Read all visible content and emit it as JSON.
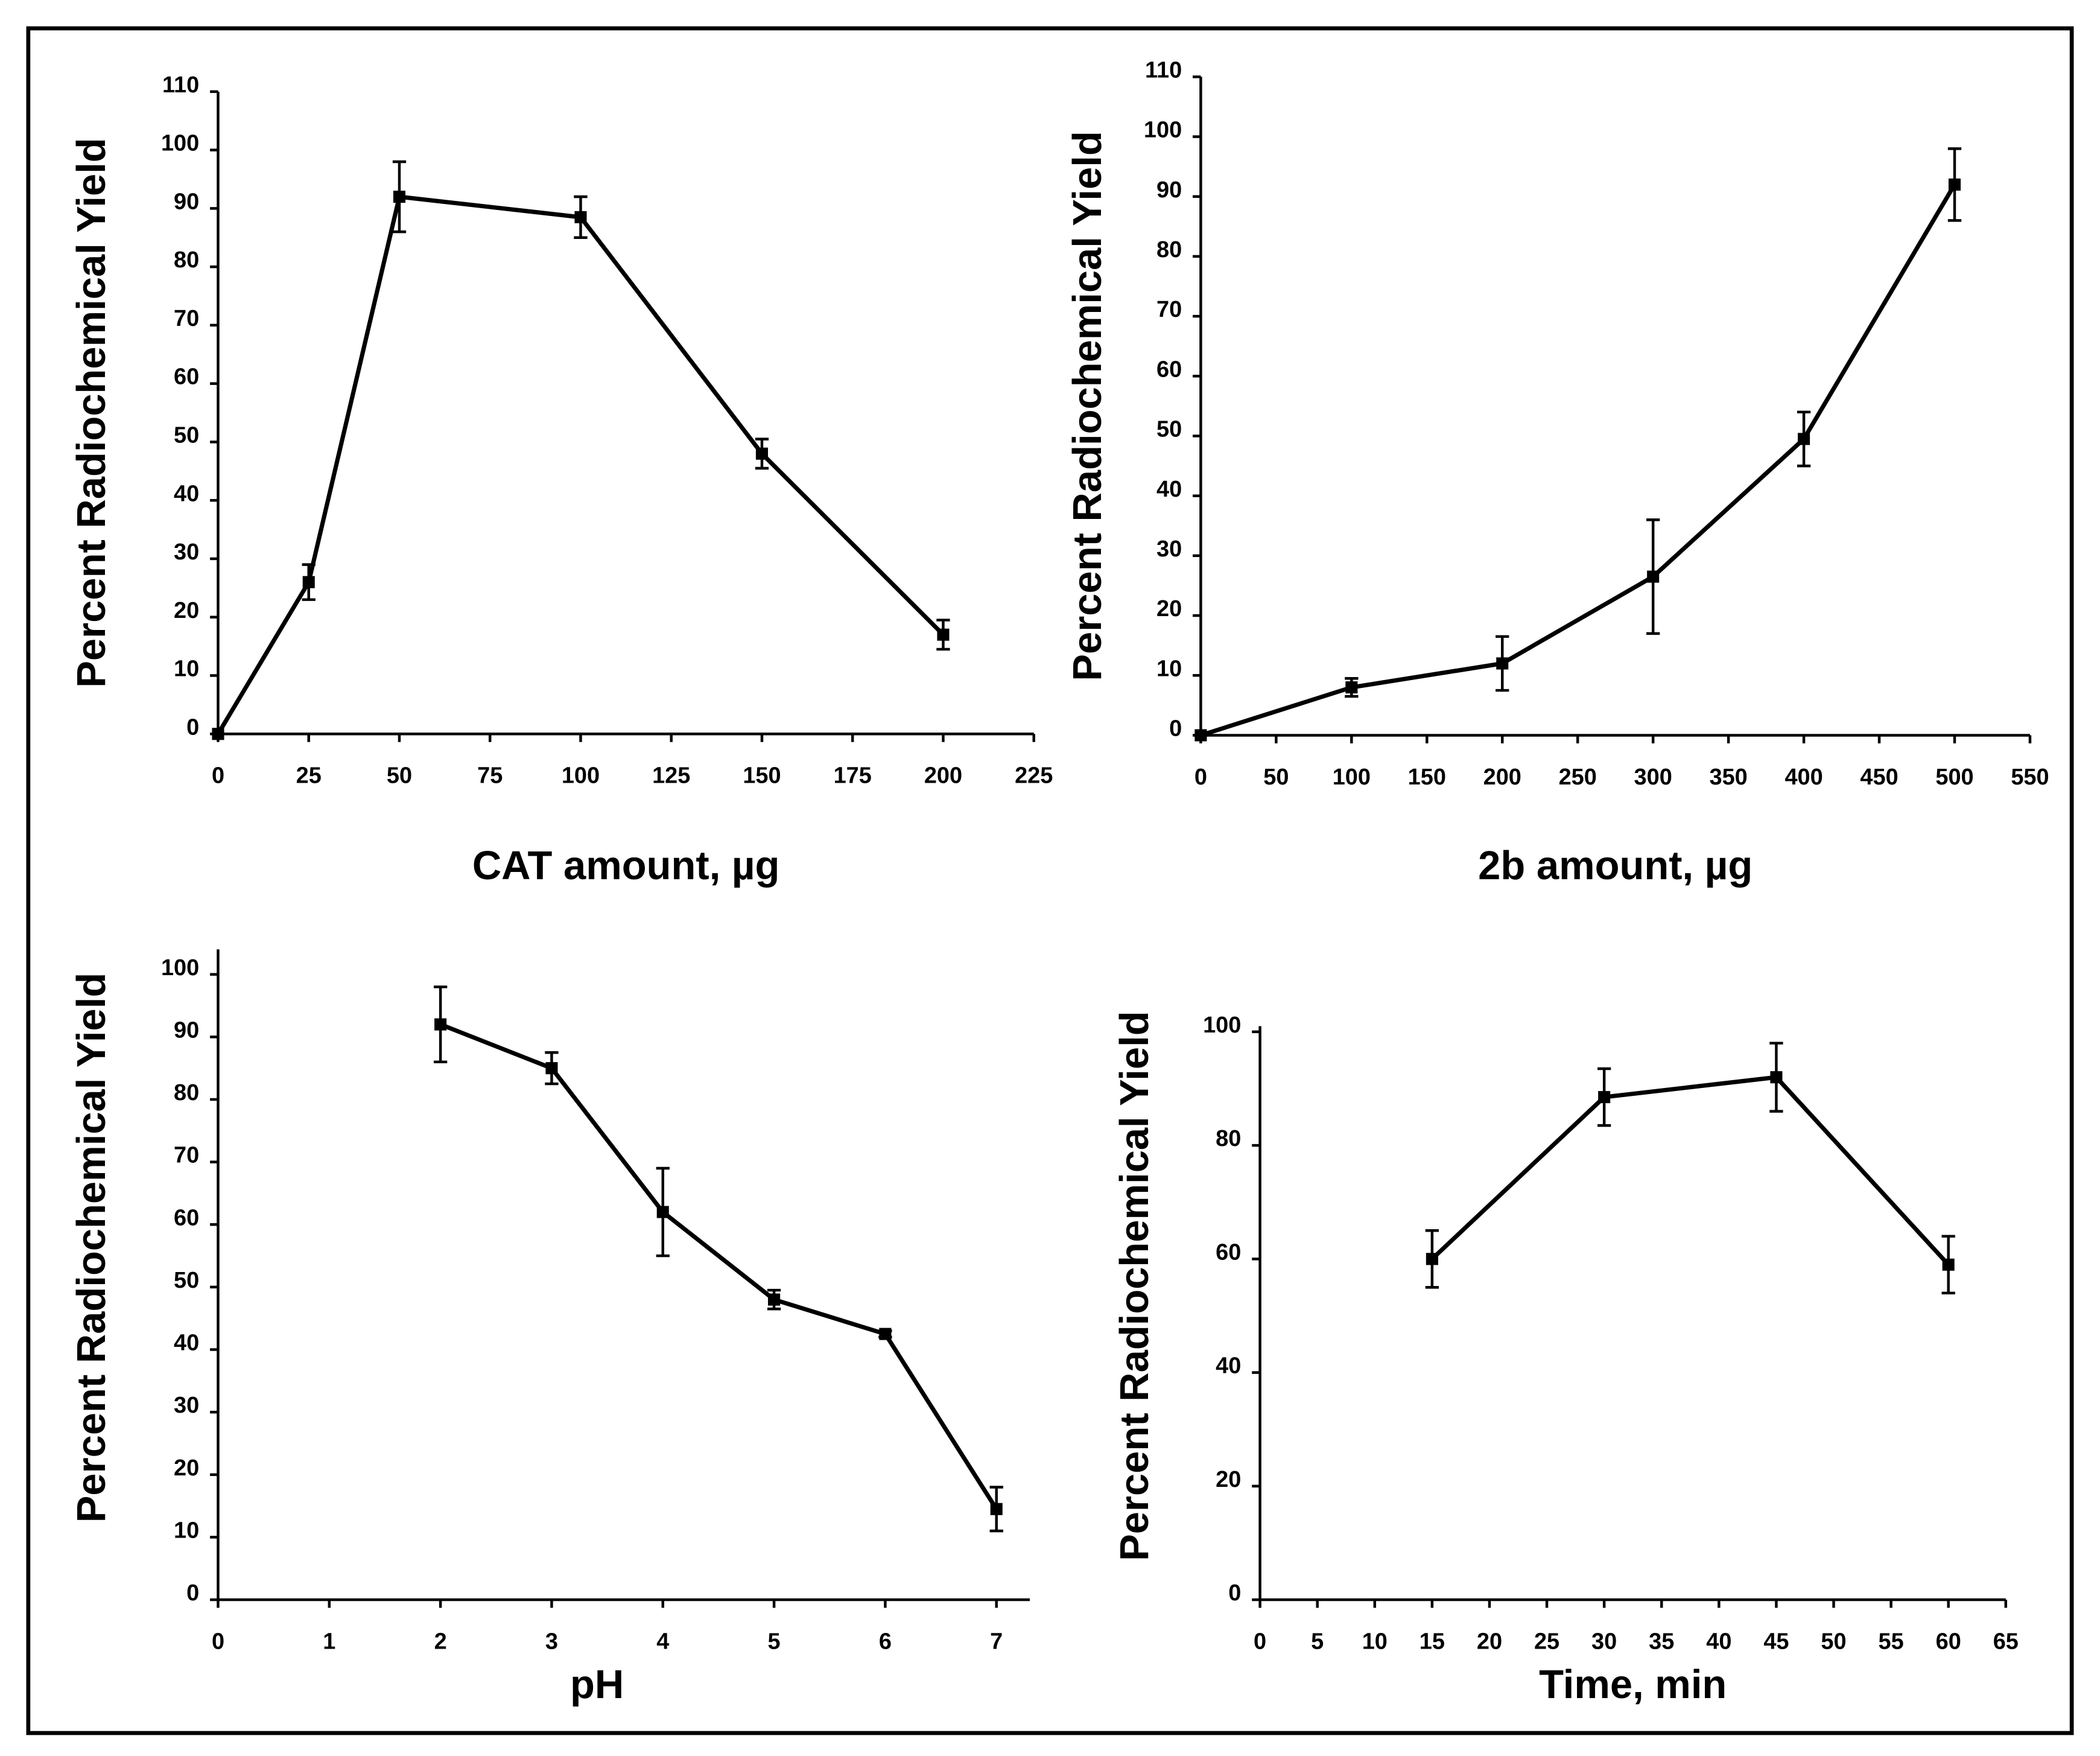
{
  "chart_data": [
    {
      "type": "line",
      "x_label": "CAT amount, µg",
      "y_label": "Percent Radiochemical Yield",
      "x": [
        0,
        25,
        50,
        100,
        150,
        200
      ],
      "series": [
        {
          "color": "#000000",
          "values": [
            0,
            26,
            92,
            88.5,
            48,
            17
          ],
          "errors": [
            0,
            3,
            6,
            3.5,
            2.5,
            2.5
          ]
        }
      ],
      "xlim": [
        0,
        225
      ],
      "ylim": [
        0,
        110
      ],
      "xticks": [
        0,
        25,
        50,
        75,
        100,
        125,
        150,
        175,
        200,
        225
      ],
      "yticks": [
        0,
        10,
        20,
        30,
        40,
        50,
        60,
        70,
        80,
        90,
        100,
        110
      ]
    },
    {
      "type": "line",
      "x_label": "2b amount, µg",
      "y_label": "Percent Radiochemical Yield",
      "x": [
        0,
        100,
        200,
        300,
        400,
        500
      ],
      "series": [
        {
          "color": "#000000",
          "values": [
            0,
            8,
            12,
            26.5,
            49.5,
            92
          ],
          "errors": [
            0,
            1.5,
            4.5,
            9.5,
            4.5,
            6
          ]
        }
      ],
      "xlim": [
        0,
        550
      ],
      "ylim": [
        0,
        110
      ],
      "xticks": [
        0,
        50,
        100,
        150,
        200,
        250,
        300,
        350,
        400,
        450,
        500,
        550
      ],
      "yticks": [
        0,
        10,
        20,
        30,
        40,
        50,
        60,
        70,
        80,
        90,
        100,
        110
      ]
    },
    {
      "type": "line",
      "x_label": "pH",
      "y_label": "Percent Radiochemical Yield",
      "x": [
        2,
        3,
        4,
        5,
        6,
        7
      ],
      "series": [
        {
          "color": "#000000",
          "values": [
            92,
            85,
            62,
            48,
            42.5,
            14.5
          ],
          "errors": [
            6,
            2.5,
            7,
            1.5,
            0.5,
            3.5
          ]
        }
      ],
      "xlim": [
        0,
        7.3
      ],
      "ylim": [
        0,
        104
      ],
      "xticks": [
        0,
        1,
        2,
        3,
        4,
        5,
        6,
        7
      ],
      "yticks": [
        0,
        10,
        20,
        30,
        40,
        50,
        60,
        70,
        80,
        90,
        100
      ]
    },
    {
      "type": "line",
      "x_label": "Time, min",
      "y_label": "Percent Radiochemical Yield",
      "x": [
        15,
        30,
        45,
        60
      ],
      "series": [
        {
          "color": "#000000",
          "values": [
            60,
            88.5,
            92,
            59
          ],
          "errors": [
            5,
            5,
            6,
            5
          ]
        }
      ],
      "xlim": [
        0,
        65
      ],
      "ylim": [
        0,
        101
      ],
      "xticks": [
        0,
        5,
        10,
        15,
        20,
        25,
        30,
        35,
        40,
        45,
        50,
        55,
        60,
        65
      ],
      "yticks": [
        0,
        20,
        40,
        60,
        80,
        100
      ]
    }
  ]
}
